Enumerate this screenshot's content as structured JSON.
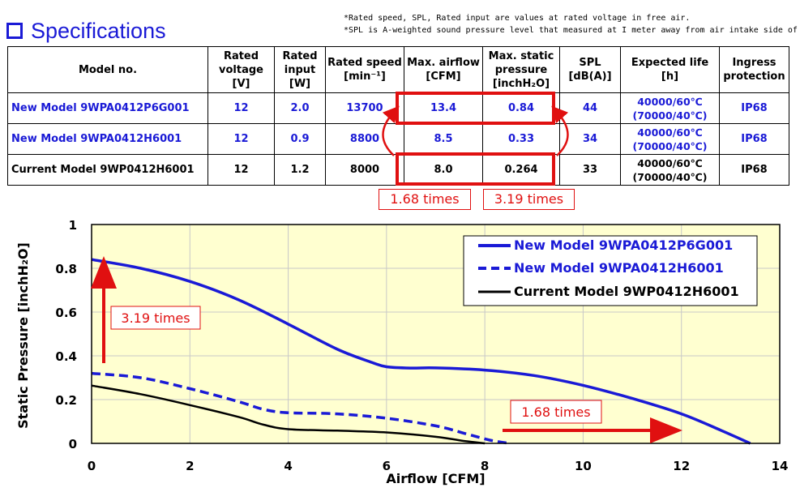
{
  "header": {
    "title": "Specifications",
    "icon": "square-outline-icon",
    "accent": "#1a1ad6"
  },
  "notes": [
    "*Rated speed, SPL, Rated input are values at rated voltage in free air.",
    "*SPL is A-weighted sound pressure level that measured at I meter away from air intake side of fan."
  ],
  "table": {
    "headers": [
      {
        "lines": [
          "Model no."
        ]
      },
      {
        "lines": [
          "Rated",
          "voltage",
          "[V]"
        ]
      },
      {
        "lines": [
          "Rated",
          "input",
          "[W]"
        ]
      },
      {
        "lines": [
          "Rated speed",
          "[min⁻¹]"
        ]
      },
      {
        "lines": [
          "Max. airflow",
          "[CFM]"
        ]
      },
      {
        "lines": [
          "Max. static",
          "pressure",
          "[inchH₂O]"
        ]
      },
      {
        "lines": [
          "SPL",
          "[dB(A)]"
        ]
      },
      {
        "lines": [
          "Expected life",
          "[h]"
        ]
      },
      {
        "lines": [
          "Ingress",
          "protection"
        ]
      }
    ],
    "rows": [
      {
        "model": "New Model  9WPA0412P6G001",
        "voltage": "12",
        "input": "2.0",
        "speed": "13700",
        "airflow": "13.4",
        "pressure": "0.84",
        "spl": "44",
        "life1": "40000/60℃",
        "life2": "(70000/40℃)",
        "ip": "IP68"
      },
      {
        "model": "New Model  9WPA0412H6001",
        "voltage": "12",
        "input": "0.9",
        "speed": "8800",
        "airflow": "8.5",
        "pressure": "0.33",
        "spl": "34",
        "life1": "40000/60℃",
        "life2": "(70000/40℃)",
        "ip": "IP68"
      },
      {
        "model": "Current Model  9WP0412H6001",
        "voltage": "12",
        "input": "1.2",
        "speed": "8000",
        "airflow": "8.0",
        "pressure": "0.264",
        "spl": "33",
        "life1": "40000/60℃",
        "life2": "(70000/40℃)",
        "ip": "IP68"
      }
    ],
    "comparisons": {
      "airflow": "1.68 times",
      "pressure": "3.19 times"
    }
  },
  "chart_data": {
    "type": "line",
    "title": "",
    "xlabel": "Airflow [CFM]",
    "ylabel": "Static Pressure [inchH₂O]",
    "xlim": [
      0,
      14
    ],
    "ylim": [
      0,
      1
    ],
    "xticks": [
      "0",
      "2",
      "4",
      "6",
      "8",
      "10",
      "12",
      "14"
    ],
    "yticks": [
      "0",
      "0.2",
      "0.4",
      "0.6",
      "0.8",
      "1"
    ],
    "grid": true,
    "background": "#ffffd0",
    "legend_position": "top-right",
    "series": [
      {
        "name": "New Model 9WPA0412P6G001",
        "color": "#1a1ad6",
        "style": "solid",
        "points": [
          [
            0,
            0.84
          ],
          [
            1,
            0.8
          ],
          [
            2,
            0.74
          ],
          [
            3,
            0.655
          ],
          [
            4,
            0.545
          ],
          [
            5,
            0.43
          ],
          [
            5.7,
            0.37
          ],
          [
            6,
            0.35
          ],
          [
            6.5,
            0.344
          ],
          [
            7,
            0.345
          ],
          [
            8,
            0.335
          ],
          [
            9,
            0.31
          ],
          [
            10,
            0.265
          ],
          [
            11,
            0.205
          ],
          [
            12,
            0.135
          ],
          [
            12.8,
            0.06
          ],
          [
            13.4,
            0
          ]
        ]
      },
      {
        "name": "New Model 9WPA0412H6001",
        "color": "#1a1ad6",
        "style": "dashed",
        "points": [
          [
            0,
            0.32
          ],
          [
            1,
            0.3
          ],
          [
            2,
            0.25
          ],
          [
            3,
            0.19
          ],
          [
            3.5,
            0.155
          ],
          [
            4,
            0.14
          ],
          [
            5,
            0.135
          ],
          [
            6,
            0.115
          ],
          [
            7,
            0.08
          ],
          [
            7.6,
            0.045
          ],
          [
            8.1,
            0.015
          ],
          [
            8.5,
            0
          ]
        ]
      },
      {
        "name": "Current Model 9WP0412H6001",
        "color": "#000000",
        "style": "solid",
        "points": [
          [
            0,
            0.264
          ],
          [
            1,
            0.225
          ],
          [
            2,
            0.175
          ],
          [
            3,
            0.12
          ],
          [
            3.5,
            0.085
          ],
          [
            4,
            0.065
          ],
          [
            5,
            0.058
          ],
          [
            6,
            0.05
          ],
          [
            7,
            0.03
          ],
          [
            7.6,
            0.01
          ],
          [
            8.0,
            0
          ]
        ]
      }
    ],
    "annotations": [
      {
        "text": "3.19 times",
        "arrow": "vertical",
        "color": "#e01010"
      },
      {
        "text": "1.68 times",
        "arrow": "horizontal",
        "color": "#e01010"
      }
    ]
  }
}
